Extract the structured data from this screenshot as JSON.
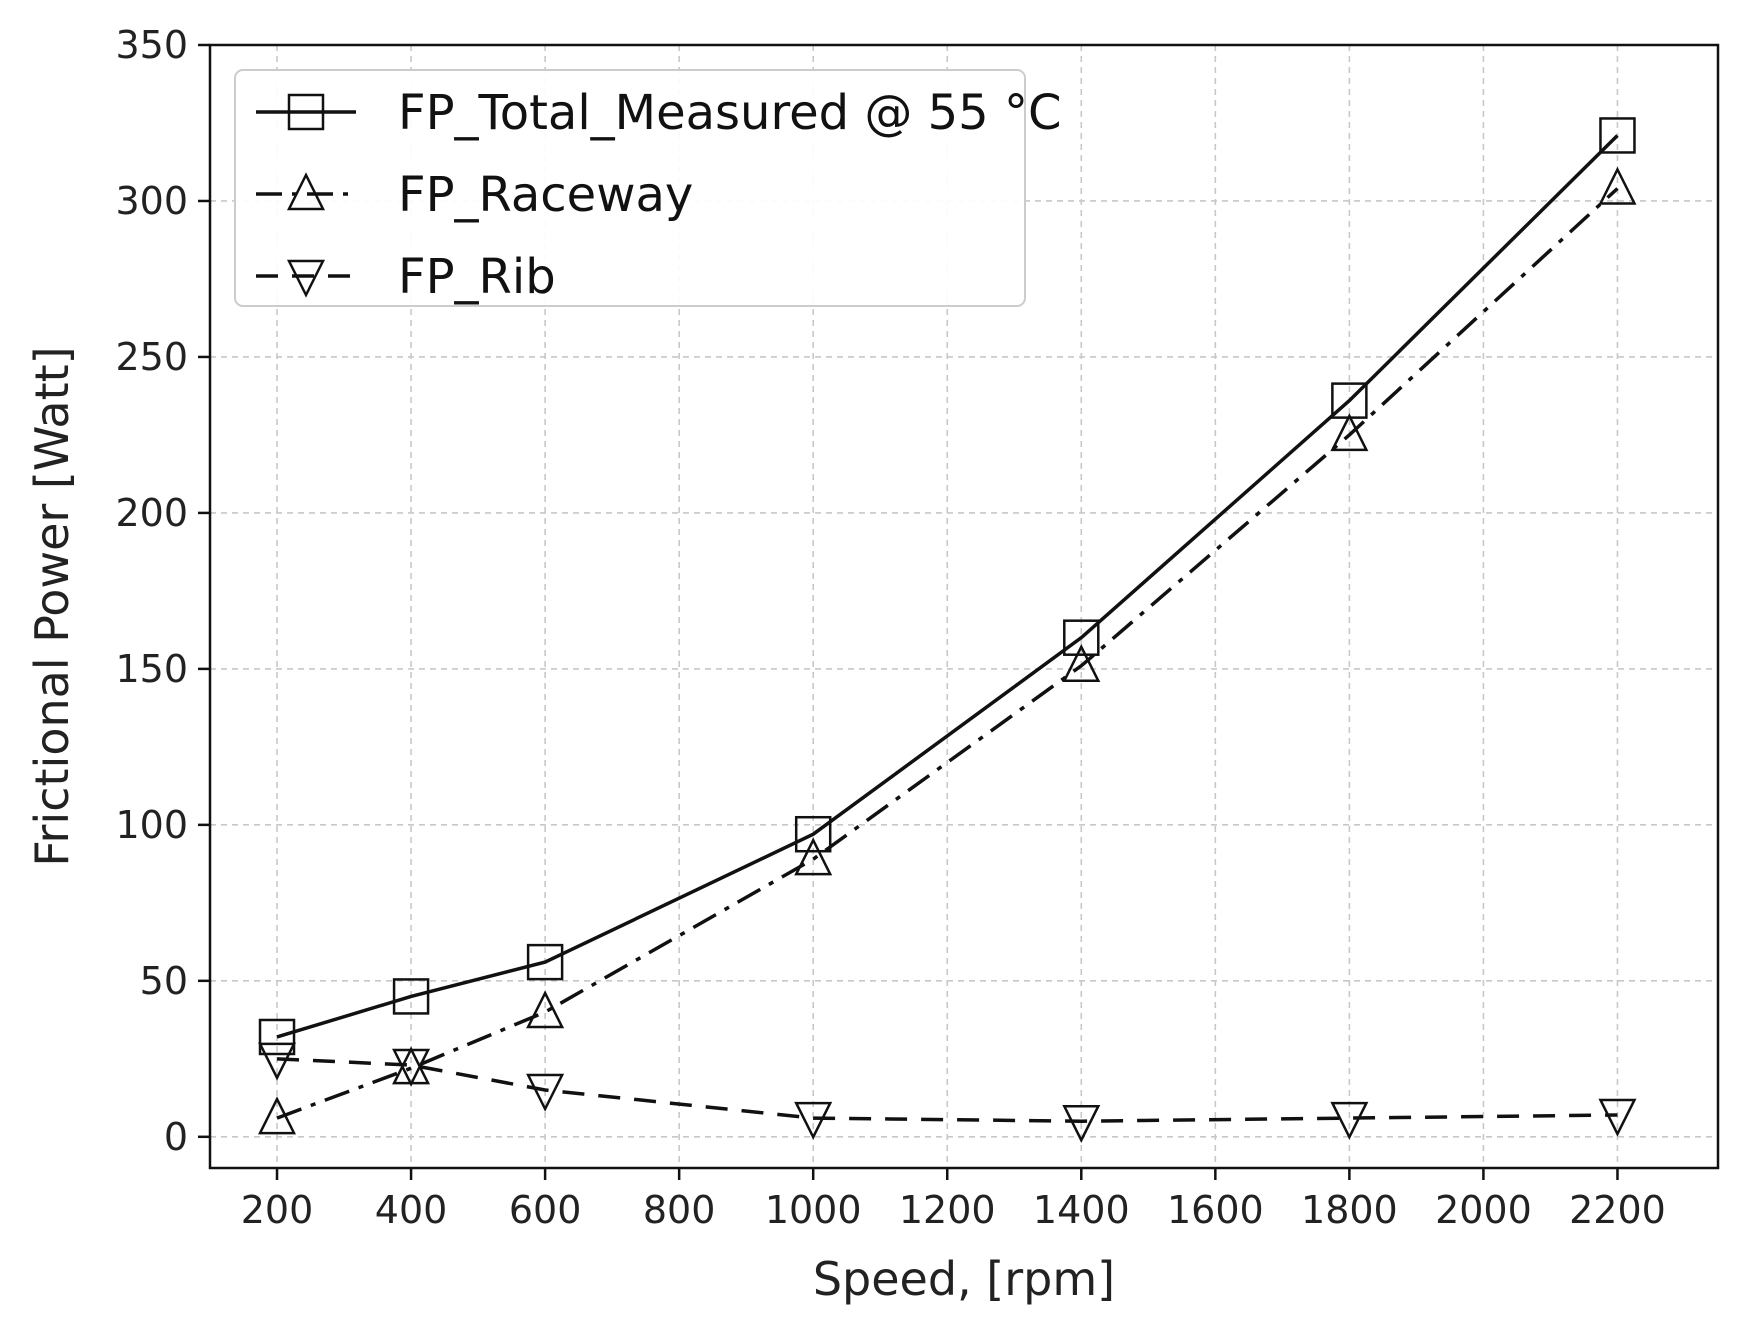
{
  "chart_data": {
    "type": "line",
    "title": "",
    "xlabel": "Speed, [rpm]",
    "ylabel": "Frictional Power [Watt]",
    "xlim": [
      100,
      2350
    ],
    "ylim": [
      -10,
      350
    ],
    "xticks": [
      200,
      400,
      600,
      800,
      1000,
      1200,
      1400,
      1600,
      1800,
      2000,
      2200
    ],
    "yticks": [
      0,
      50,
      100,
      150,
      200,
      250,
      300,
      350
    ],
    "grid": true,
    "legend_position": "top-left",
    "x": [
      200,
      400,
      600,
      1000,
      1400,
      1800,
      2200
    ],
    "series": [
      {
        "name": "FP_Total_Measured @ 55 °C",
        "marker": "square",
        "linestyle": "solid",
        "color": "#111111",
        "values": [
          32,
          45,
          56,
          97,
          160,
          236,
          321
        ]
      },
      {
        "name": "FP_Raceway",
        "marker": "triangle-up",
        "linestyle": "dashdot",
        "color": "#111111",
        "values": [
          6,
          22,
          40,
          89,
          151,
          225,
          304
        ]
      },
      {
        "name": "FP_Rib",
        "marker": "triangle-down",
        "linestyle": "dashed",
        "color": "#111111",
        "values": [
          25,
          23,
          15,
          6,
          5,
          6,
          7
        ]
      }
    ]
  }
}
